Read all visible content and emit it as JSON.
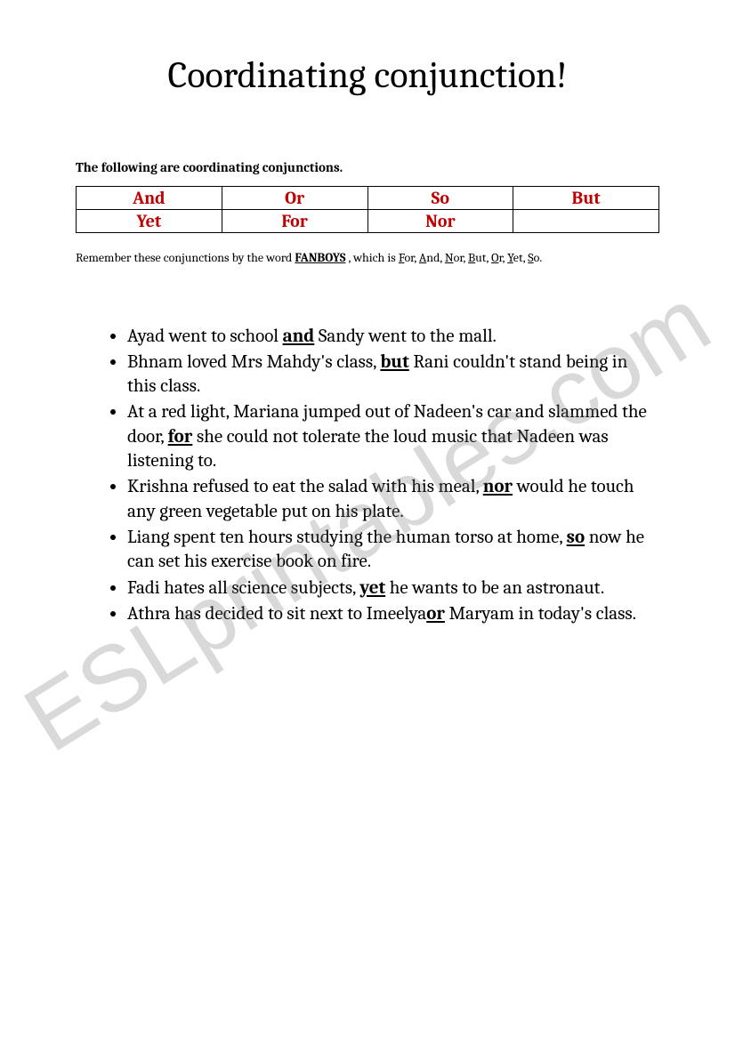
{
  "title": "Coordinating conjunction!",
  "intro": "The following are coordinating conjunctions.",
  "table": {
    "rows": [
      [
        "And",
        "Or",
        "So",
        "But"
      ],
      [
        "Yet",
        "For",
        "Nor",
        ""
      ]
    ],
    "cell_color": "#c00000",
    "border_color": "#000000"
  },
  "note": {
    "prefix": "Remember these conjunctions by the word ",
    "fanboys": "FANBOYS",
    "mid": " , which is ",
    "parts": [
      {
        "u": "F",
        "rest": "or"
      },
      {
        "u": "A",
        "rest": "nd"
      },
      {
        "u": "N",
        "rest": "or"
      },
      {
        "u": "B",
        "rest": "ut"
      },
      {
        "u": "O",
        "rest": "r"
      },
      {
        "u": "Y",
        "rest": "et"
      },
      {
        "u": "S",
        "rest": "o"
      }
    ],
    "suffix": "."
  },
  "examples": [
    {
      "pre": "Ayad went to school ",
      "conj": "and",
      "post": " Sandy went to the mall."
    },
    {
      "pre": "Bhnam loved Mrs Mahdy's class, ",
      "conj": "but",
      "post": " Rani couldn't stand being in this class."
    },
    {
      "pre": "At a red light, Mariana jumped out of Nadeen's car and slammed the door, ",
      "conj": "for",
      "post": " she could not tolerate the loud music that Nadeen was listening to."
    },
    {
      "pre": "Krishna refused to eat the salad with his meal, ",
      "conj": "nor",
      "post": " would he touch any green vegetable put on his plate."
    },
    {
      "pre": "Liang spent ten hours studying the human torso at home, ",
      "conj": "so",
      "post": " now he can set his exercise book on fire."
    },
    {
      "pre": "Fadi hates all science subjects, ",
      "conj": "yet",
      "post": " he wants to be an astronaut."
    },
    {
      "pre": "Athra has decided to sit next to Imeelya",
      "conj": "or",
      "post": " Maryam in today's class."
    }
  ],
  "watermark": "ESLprintables.com"
}
